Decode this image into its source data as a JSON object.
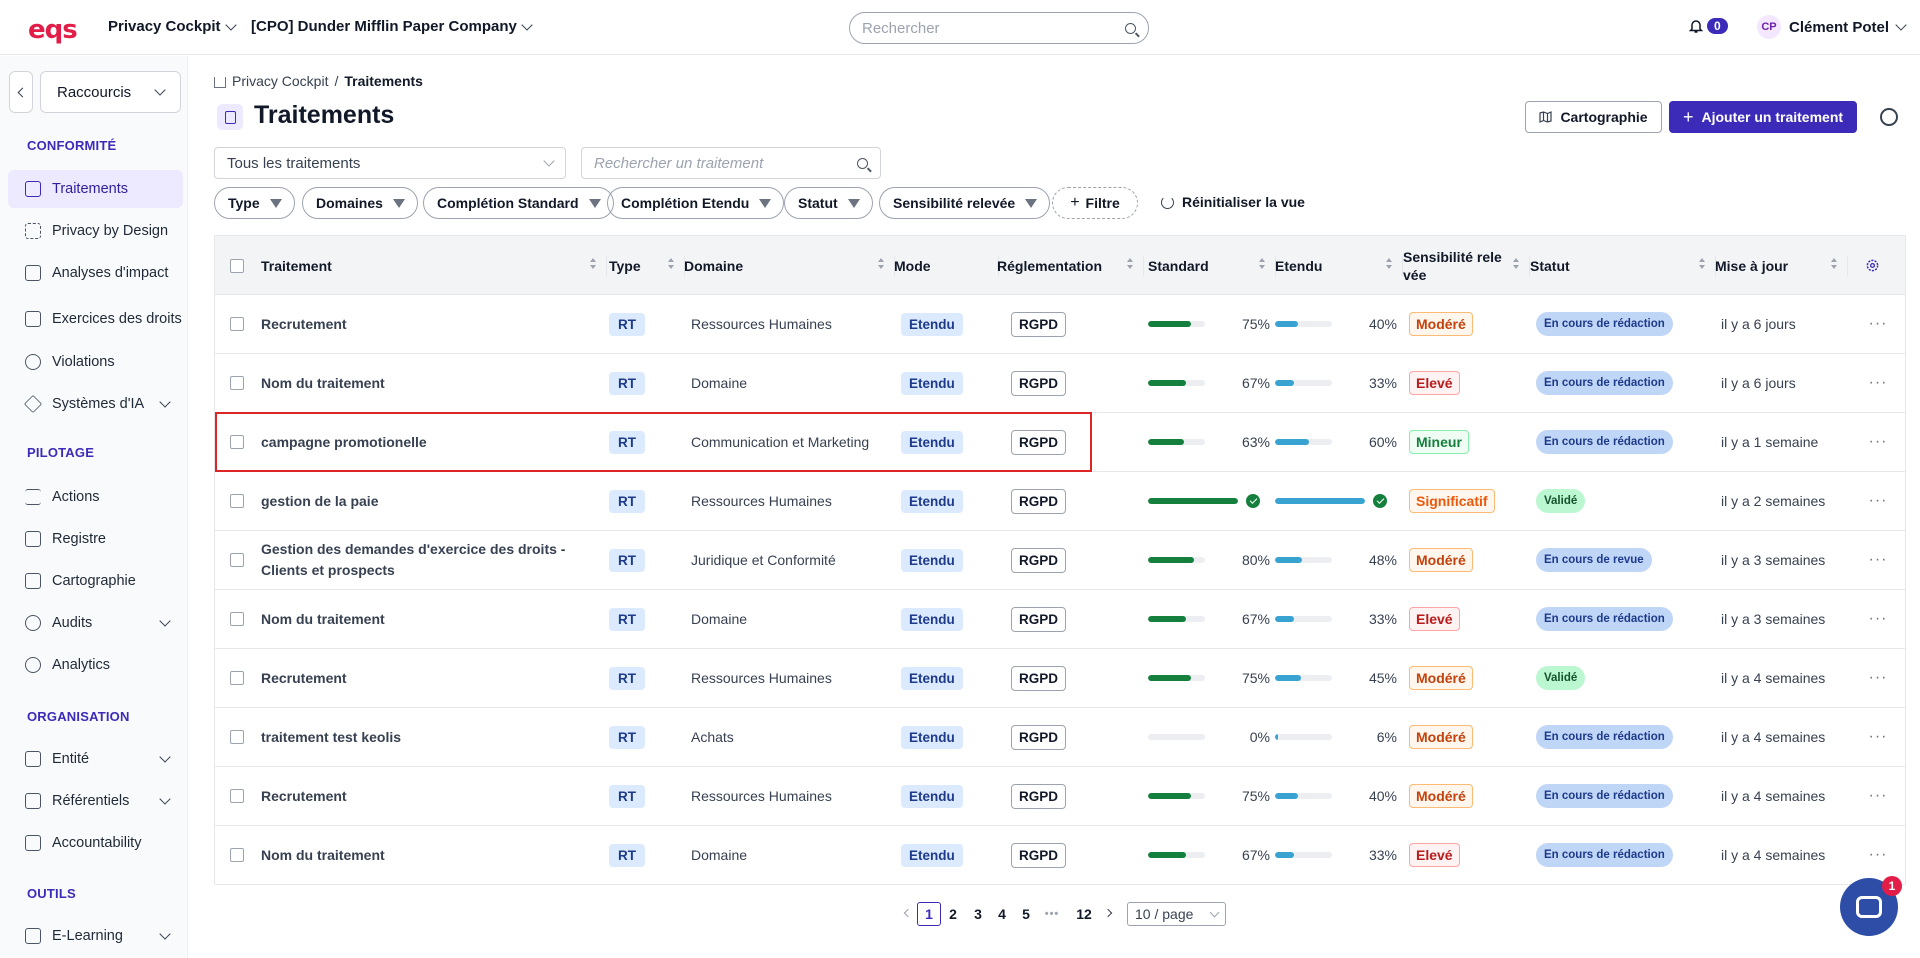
{
  "app": {
    "logo": "eqs",
    "product_menu": "Privacy Cockpit",
    "org_menu": "[CPO] Dunder Mifflin Paper Company",
    "search_placeholder": "Rechercher",
    "notifications_count": "0",
    "user_initials": "CP",
    "user_name": "Clément Potel",
    "help_badge": "1"
  },
  "sidebar": {
    "shortcuts": "Raccourcis",
    "sections": [
      {
        "title": "CONFORMITÉ"
      },
      {
        "title": "PILOTAGE"
      },
      {
        "title": "ORGANISATION"
      },
      {
        "title": "OUTILS"
      }
    ],
    "items": [
      {
        "label": "Traitements"
      },
      {
        "label": "Privacy by Design"
      },
      {
        "label": "Analyses d'impact"
      },
      {
        "label": "Exercices des droits"
      },
      {
        "label": "Violations"
      },
      {
        "label": "Systèmes d'IA"
      },
      {
        "label": "Actions"
      },
      {
        "label": "Registre"
      },
      {
        "label": "Cartographie"
      },
      {
        "label": "Audits"
      },
      {
        "label": "Analytics"
      },
      {
        "label": "Entité"
      },
      {
        "label": "Référentiels"
      },
      {
        "label": "Accountability"
      },
      {
        "label": "E-Learning"
      }
    ]
  },
  "breadcrumb": {
    "root": "Privacy Cockpit",
    "sep": "/",
    "current": "Traitements"
  },
  "page": {
    "title": "Traitements",
    "btn_carto": "Cartographie",
    "btn_add": "Ajouter un traitement",
    "view_select": "Tous les traitements",
    "search_placeholder": "Rechercher un traitement",
    "filters": [
      "Type",
      "Domaines",
      "Complétion Standard",
      "Complétion Etendu",
      "Statut",
      "Sensibilité relevée"
    ],
    "add_filter": "Filtre",
    "reset_view": "Réinitialiser la vue"
  },
  "table": {
    "headers": [
      "Traitement",
      "Type",
      "Domaine",
      "Mode",
      "Réglementation",
      "Standard",
      "Etendu",
      "Sensibilité rele vée",
      "Statut",
      "Mise à jour"
    ],
    "rows": [
      {
        "name": "Recrutement",
        "type": "RT",
        "domain": "Ressources Humaines",
        "mode": "Etendu",
        "reg": "RGPD",
        "std": 75,
        "std_label": "75%",
        "ext": 40,
        "ext_label": "40%",
        "sens": "Modéré",
        "status": "En cours de rédaction",
        "updated": "il y a 6 jours"
      },
      {
        "name": "Nom du traitement",
        "type": "RT",
        "domain": "Domaine",
        "mode": "Etendu",
        "reg": "RGPD",
        "std": 67,
        "std_label": "67%",
        "ext": 33,
        "ext_label": "33%",
        "sens": "Elevé",
        "status": "En cours de rédaction",
        "updated": "il y a 6 jours"
      },
      {
        "name": "campagne promotionelle",
        "type": "RT",
        "domain": "Communication et Marketing",
        "mode": "Etendu",
        "reg": "RGPD",
        "std": 63,
        "std_label": "63%",
        "ext": 60,
        "ext_label": "60%",
        "sens": "Mineur",
        "status": "En cours de rédaction",
        "updated": "il y a 1 semaine"
      },
      {
        "name": "gestion de la paie",
        "type": "RT",
        "domain": "Ressources Humaines",
        "mode": "Etendu",
        "reg": "RGPD",
        "std": 100,
        "std_label": "",
        "ext": 100,
        "ext_label": "",
        "sens": "Significatif",
        "status": "Validé",
        "updated": "il y a 2 semaines"
      },
      {
        "name": "Gestion des demandes d'exercice des droits - Clients et prospects",
        "type": "RT",
        "domain": "Juridique et Conformité",
        "mode": "Etendu",
        "reg": "RGPD",
        "std": 80,
        "std_label": "80%",
        "ext": 48,
        "ext_label": "48%",
        "sens": "Modéré",
        "status": "En cours de revue",
        "updated": "il y a 3 semaines"
      },
      {
        "name": "Nom du traitement",
        "type": "RT",
        "domain": "Domaine",
        "mode": "Etendu",
        "reg": "RGPD",
        "std": 67,
        "std_label": "67%",
        "ext": 33,
        "ext_label": "33%",
        "sens": "Elevé",
        "status": "En cours de rédaction",
        "updated": "il y a 3 semaines"
      },
      {
        "name": "Recrutement",
        "type": "RT",
        "domain": "Ressources Humaines",
        "mode": "Etendu",
        "reg": "RGPD",
        "std": 75,
        "std_label": "75%",
        "ext": 45,
        "ext_label": "45%",
        "sens": "Modéré",
        "status": "Validé",
        "updated": "il y a 4 semaines"
      },
      {
        "name": "traitement test keolis",
        "type": "RT",
        "domain": "Achats",
        "mode": "Etendu",
        "reg": "RGPD",
        "std": 0,
        "std_label": "0%",
        "ext": 6,
        "ext_label": "6%",
        "sens": "Modéré",
        "status": "En cours de rédaction",
        "updated": "il y a 4 semaines"
      },
      {
        "name": "Recrutement",
        "type": "RT",
        "domain": "Ressources Humaines",
        "mode": "Etendu",
        "reg": "RGPD",
        "std": 75,
        "std_label": "75%",
        "ext": 40,
        "ext_label": "40%",
        "sens": "Modéré",
        "status": "En cours de rédaction",
        "updated": "il y a 4 semaines"
      },
      {
        "name": "Nom du traitement",
        "type": "RT",
        "domain": "Domaine",
        "mode": "Etendu",
        "reg": "RGPD",
        "std": 67,
        "std_label": "67%",
        "ext": 33,
        "ext_label": "33%",
        "sens": "Elevé",
        "status": "En cours de rédaction",
        "updated": "il y a 4 semaines"
      }
    ]
  },
  "colors": {
    "accent": "#3b2bb8",
    "std_bar": "#15803d",
    "ext_bar": "#38a3d0",
    "highlight": "#dc2626",
    "sens": {
      "Modéré": {
        "bg": "#fff7ed",
        "fg": "#c2410c",
        "border": "#fdba74"
      },
      "Elevé": {
        "bg": "#fef2f2",
        "fg": "#b91c1c",
        "border": "#fca5a5"
      },
      "Mineur": {
        "bg": "#f0fdf4",
        "fg": "#15803d",
        "border": "#86efac"
      },
      "Significatif": {
        "bg": "#fff7ed",
        "fg": "#ea580c",
        "border": "#fdba74"
      }
    },
    "status": {
      "En cours de rédaction": {
        "bg": "#bfd6f6",
        "fg": "#1e3a8a"
      },
      "En cours de revue": {
        "bg": "#bfd6f6",
        "fg": "#1e3a8a"
      },
      "Validé": {
        "bg": "#bbf7d0",
        "fg": "#14532d"
      }
    }
  },
  "pagination": {
    "pages": [
      "1",
      "2",
      "3",
      "4",
      "5",
      "•••",
      "12"
    ],
    "current": "1",
    "page_size": "10 / page"
  }
}
